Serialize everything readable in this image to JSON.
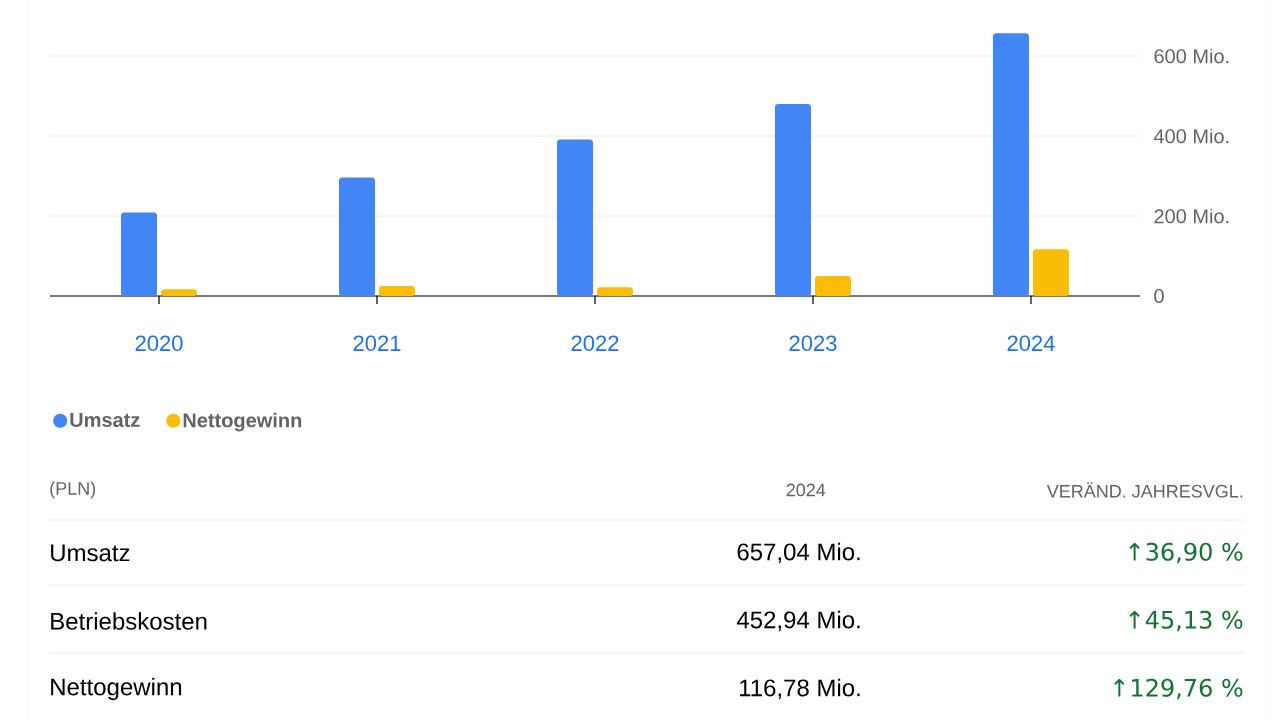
{
  "chart_data": {
    "type": "bar",
    "categories": [
      "2020",
      "2021",
      "2022",
      "2023",
      "2024"
    ],
    "series": [
      {
        "name": "Umsatz",
        "color": "#4285f4",
        "values": [
          209,
          296,
          391,
          480,
          657
        ]
      },
      {
        "name": "Nettogewinn",
        "color": "#fbbc04",
        "values": [
          17,
          25,
          22,
          50,
          117
        ]
      }
    ],
    "ylim": [
      0,
      740
    ],
    "yticks": [
      0,
      {
        "value": 200,
        "label": "200 Mio."
      },
      {
        "value": 400,
        "label": "400 Mio."
      },
      {
        "value": 600,
        "label": "600 Mio."
      }
    ],
    "grid": "y",
    "legend": "bottom left",
    "annotations": [
      "(PLN)",
      "2024",
      "VERÄND. JAHRESVGL.",
      "Umsatz",
      "657,04 Mio.",
      "↑36,90 %",
      "Betriebskosten",
      "452,94 Mio.",
      "↑45,13 %",
      "Nettogewinn",
      "116,78 Mio.",
      "↑129,76 %"
    ]
  }
}
